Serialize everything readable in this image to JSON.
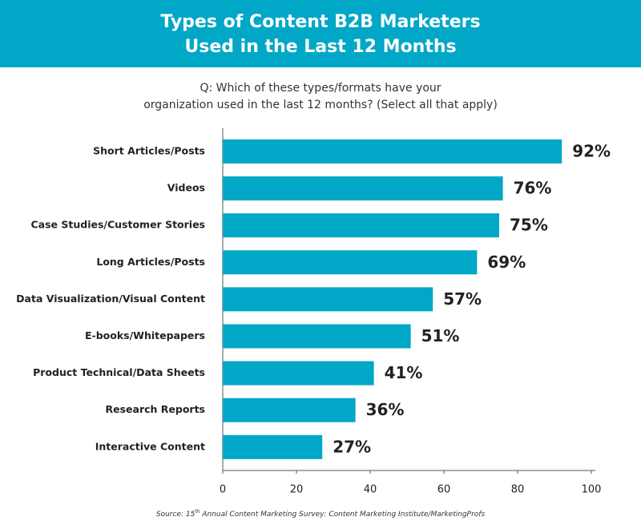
{
  "chart_data": {
    "type": "hbar",
    "title": [
      "Types of Content B2B Marketers",
      "Used in the Last 12 Months"
    ],
    "subtitle": [
      "Q: Which of these types/formats have your",
      "organization used in the last 12 months? (Select all that apply)"
    ],
    "categories": [
      "Short Articles/Posts",
      "Videos",
      "Case Studies/Customer Stories",
      "Long Articles/Posts",
      "Data Visualization/Visual Content",
      "E-books/Whitepapers",
      "Product Technical/Data Sheets",
      "Research Reports",
      "Interactive Content"
    ],
    "values": [
      92,
      76,
      75,
      69,
      57,
      51,
      41,
      36,
      27
    ],
    "value_labels": [
      "92%",
      "76%",
      "75%",
      "69%",
      "57%",
      "51%",
      "41%",
      "36%",
      "27%"
    ],
    "color": "#00a7c7",
    "xlim": [
      0,
      100
    ],
    "xticks": [
      0,
      20,
      40,
      60,
      80,
      100
    ],
    "source": [
      "Source: 15",
      "th",
      " Annual Content Marketing Survey: Content Marketing Institute/MarketingProfs"
    ]
  }
}
